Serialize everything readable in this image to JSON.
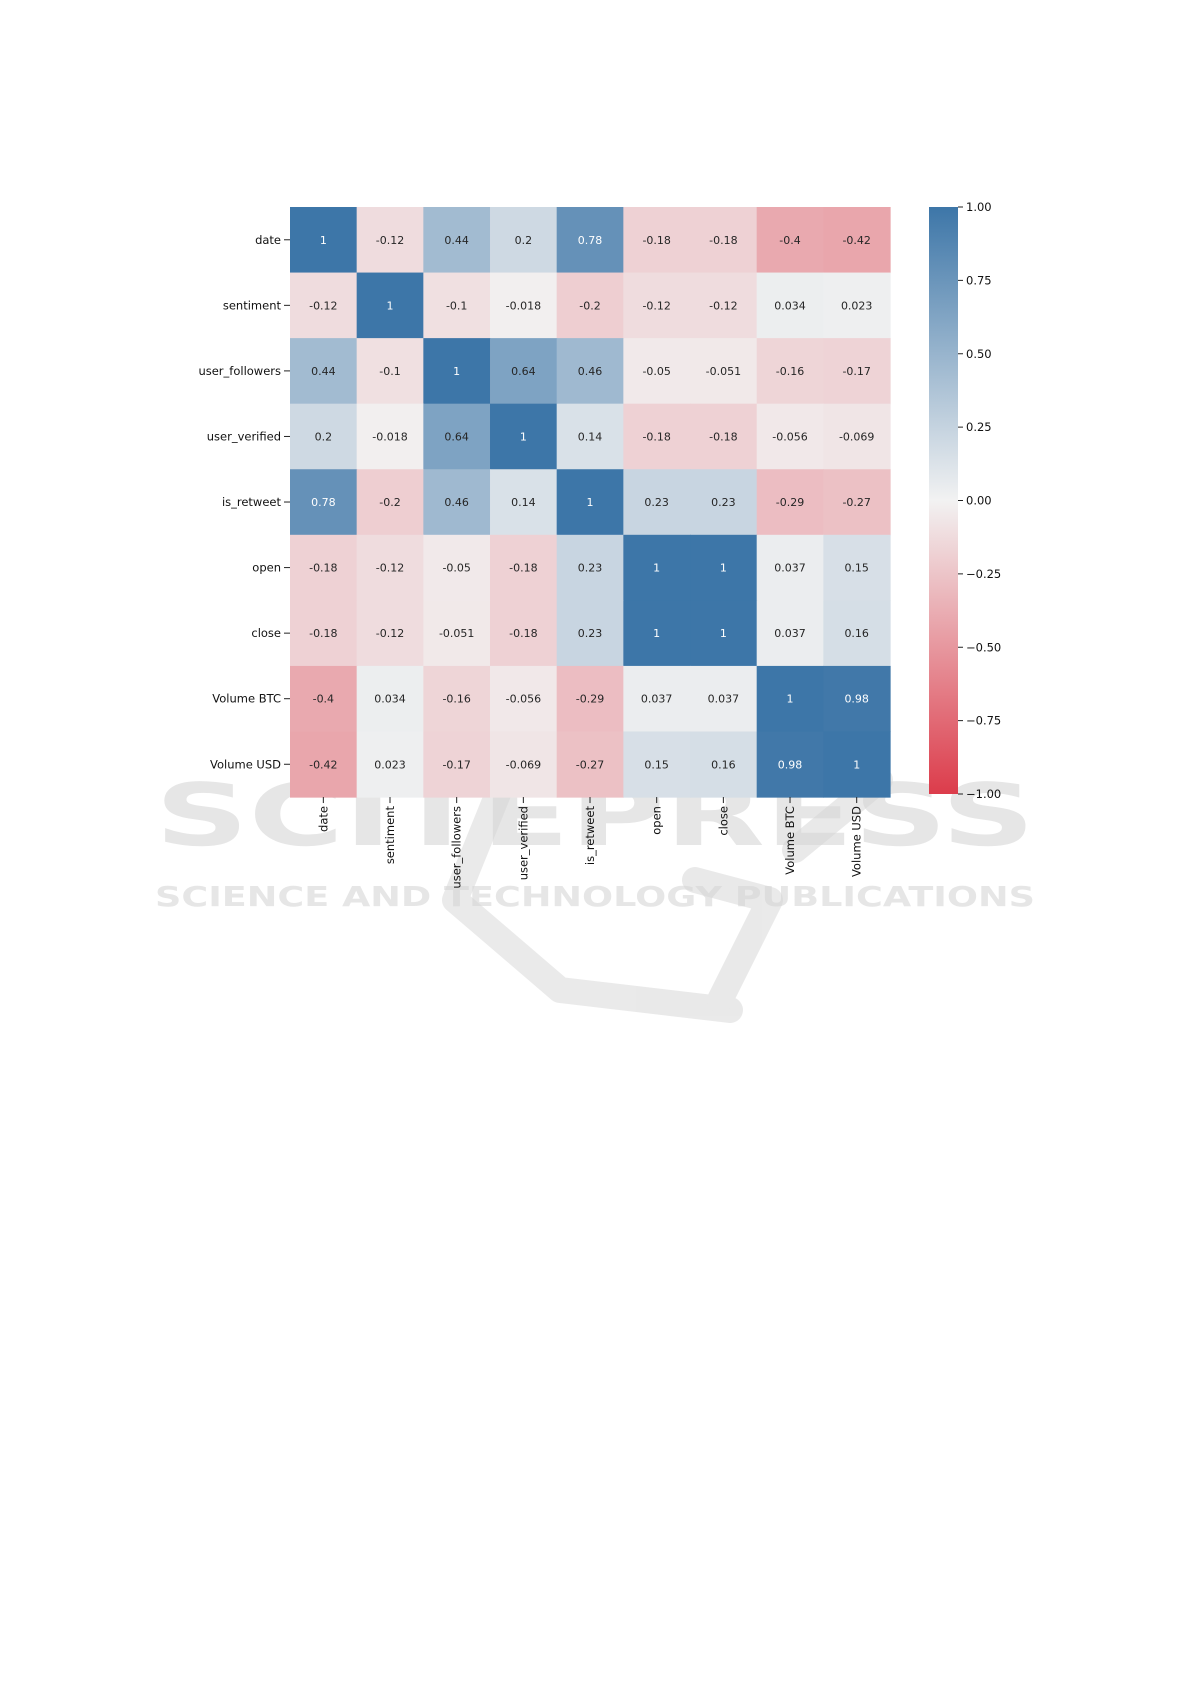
{
  "watermark": {
    "line1": "SCITEPRESS",
    "line2": "SCIENCE AND TECHNOLOGY PUBLICATIONS"
  },
  "chart_data": {
    "type": "heatmap",
    "title": "",
    "row_labels": [
      "date",
      "sentiment",
      "user_followers",
      "user_verified",
      "is_retweet",
      "open",
      "close",
      "Volume BTC",
      "Volume USD"
    ],
    "col_labels": [
      "date",
      "sentiment",
      "user_followers",
      "user_verified",
      "is_retweet",
      "open",
      "close",
      "Volume BTC",
      "Volume USD"
    ],
    "values": [
      [
        1,
        -0.12,
        0.44,
        0.2,
        0.78,
        -0.18,
        -0.18,
        -0.4,
        -0.42
      ],
      [
        -0.12,
        1,
        -0.1,
        -0.018,
        -0.2,
        -0.12,
        -0.12,
        0.034,
        0.023
      ],
      [
        0.44,
        -0.1,
        1,
        0.64,
        0.46,
        -0.05,
        -0.051,
        -0.16,
        -0.17
      ],
      [
        0.2,
        -0.018,
        0.64,
        1,
        0.14,
        -0.18,
        -0.18,
        -0.056,
        -0.069
      ],
      [
        0.78,
        -0.2,
        0.46,
        0.14,
        1,
        0.23,
        0.23,
        -0.29,
        -0.27
      ],
      [
        -0.18,
        -0.12,
        -0.05,
        -0.18,
        0.23,
        1,
        1,
        0.037,
        0.15
      ],
      [
        -0.18,
        -0.12,
        -0.051,
        -0.18,
        0.23,
        1,
        1,
        0.037,
        0.16
      ],
      [
        -0.4,
        0.034,
        -0.16,
        -0.056,
        -0.29,
        0.037,
        0.037,
        1,
        0.98
      ],
      [
        -0.42,
        0.023,
        -0.17,
        -0.069,
        -0.27,
        0.15,
        0.16,
        0.98,
        1
      ]
    ],
    "colorbar": {
      "range": [
        -1.0,
        1.0
      ],
      "ticks": [
        1.0,
        0.75,
        0.5,
        0.25,
        0.0,
        -0.25,
        -0.5,
        -0.75,
        -1.0
      ],
      "tick_labels": [
        "1.00",
        "0.75",
        "0.50",
        "0.25",
        "0.00",
        "−0.25",
        "−0.50",
        "−0.75",
        "−1.00"
      ],
      "colors": {
        "negative": "#dc3c4b",
        "center": "#f2f2f2",
        "positive": "#3d76a8"
      }
    }
  }
}
